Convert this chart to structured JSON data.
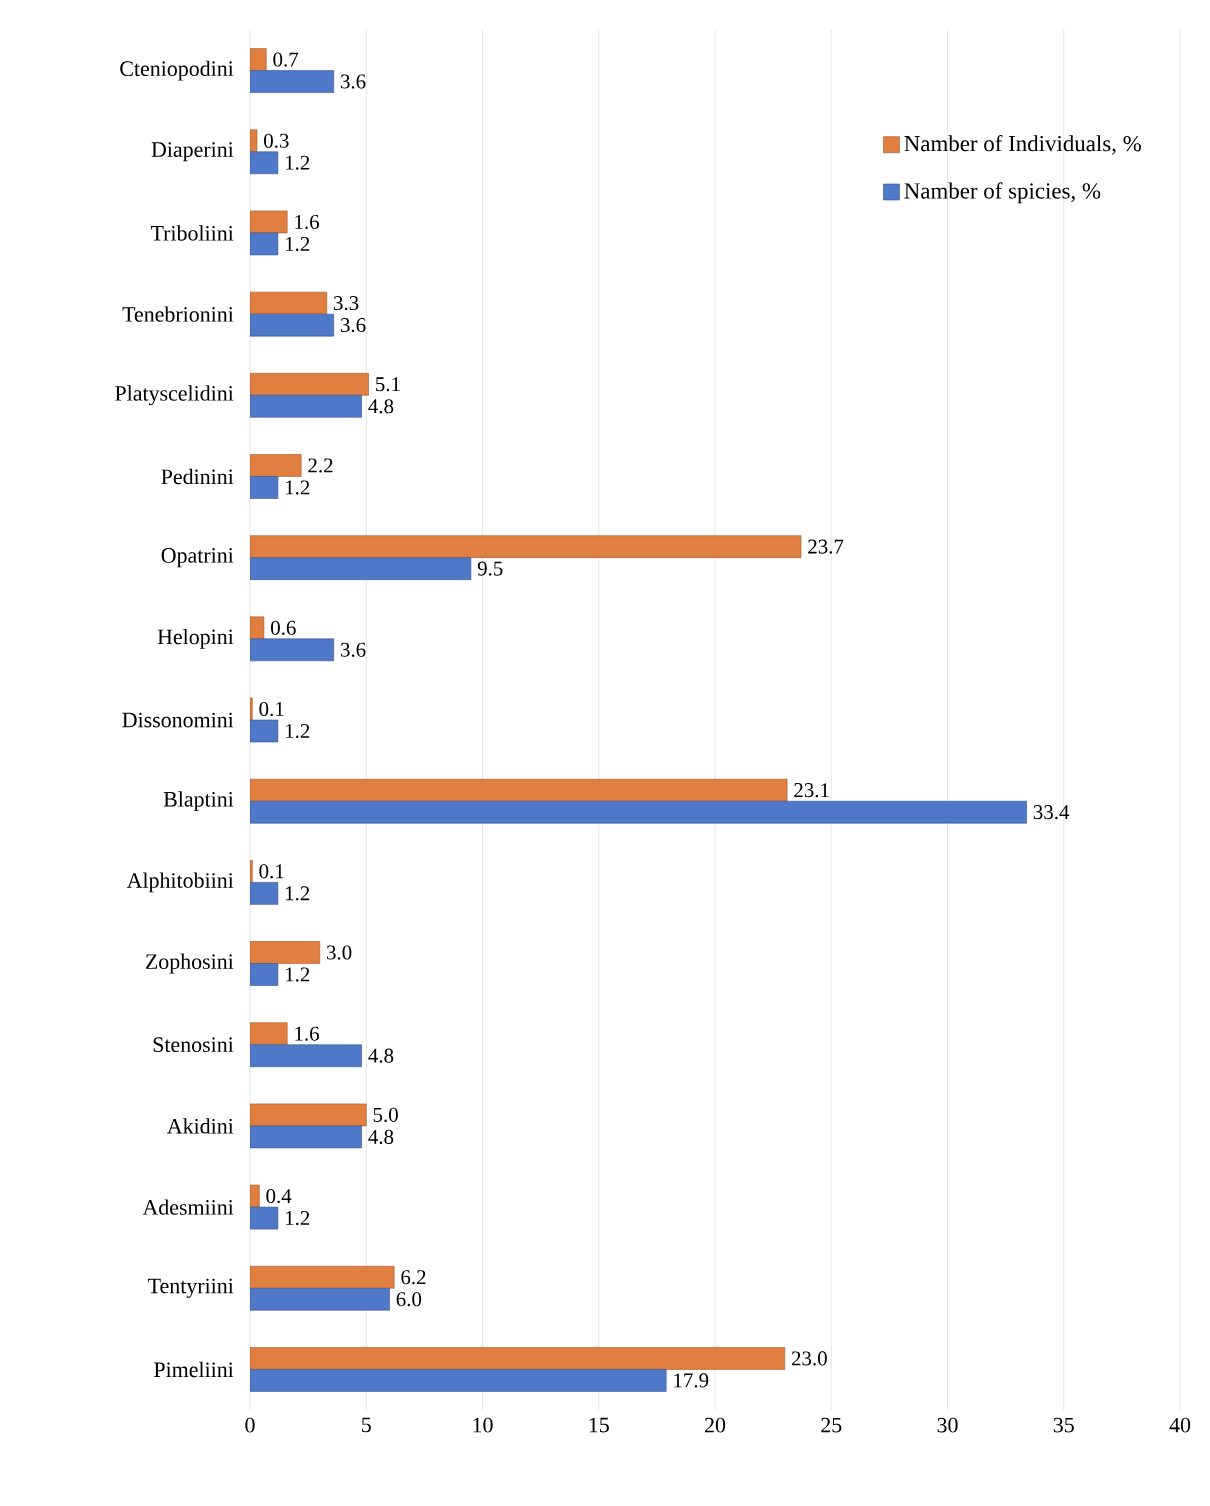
{
  "chart_data": {
    "type": "bar",
    "orientation": "horizontal",
    "categories": [
      "Cteniopodini",
      "Diaperini",
      "Triboliini",
      "Tenebrionini",
      "Platyscelidini",
      "Pedinini",
      "Opatrini",
      "Helopini",
      "Dissonomini",
      "Blaptini",
      "Alphitobiini",
      "Zophosini",
      "Stenosini",
      "Akidini",
      "Adesmiini",
      "Tentyriini",
      "Pimeliini"
    ],
    "series": [
      {
        "name": "Namber of Individuals, %",
        "color": "#e07f3f",
        "values": [
          0.7,
          0.3,
          1.6,
          3.3,
          5.1,
          2.2,
          23.7,
          0.6,
          0.1,
          23.1,
          0.1,
          3.0,
          1.6,
          5.0,
          0.4,
          6.2,
          23.0
        ],
        "value_labels": [
          "0.7",
          "0.3",
          "1.6",
          "3.3",
          "5.1",
          "2.2",
          "23.7",
          "0.6",
          "0.1",
          "23.1",
          "0.1",
          "3.0",
          "1.6",
          "5.0",
          "0.4",
          "6.2",
          "23.0"
        ]
      },
      {
        "name": "Namber of spicies, %",
        "color": "#4f78c8",
        "values": [
          3.6,
          1.2,
          1.2,
          3.6,
          4.8,
          1.2,
          9.5,
          3.6,
          1.2,
          33.4,
          1.2,
          1.2,
          4.8,
          4.8,
          1.2,
          6.0,
          17.9
        ],
        "value_labels": [
          "3.6",
          "1.2",
          "1.2",
          "3.6",
          "4.8",
          "1.2",
          "9.5",
          "3.6",
          "1.2",
          "33.4",
          "1.2",
          "1.2",
          "4.8",
          "4.8",
          "1.2",
          "6.0",
          "17.9"
        ]
      }
    ],
    "xlim": [
      0,
      40
    ],
    "xticks": [
      0,
      5,
      10,
      15,
      20,
      25,
      30,
      35,
      40
    ],
    "grid": "x",
    "legend": "top right"
  }
}
